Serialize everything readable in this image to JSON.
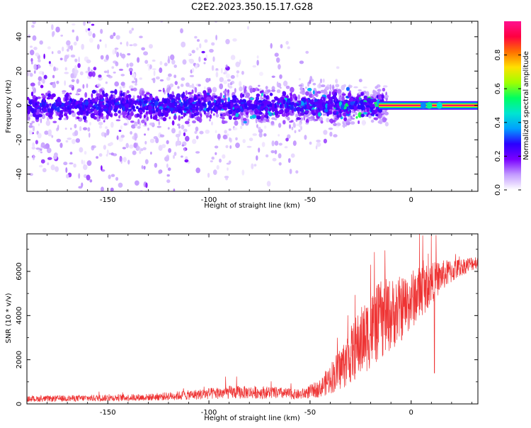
{
  "title": "C2E2.2023.350.15.17.G28",
  "chart_data": [
    {
      "type": "heatmap",
      "xlabel": "Height of straight line (km)",
      "ylabel": "Frequency (Hz)",
      "xlim": [
        -190,
        33
      ],
      "ylim": [
        -50,
        49
      ],
      "xticks": [
        -150,
        -100,
        -50,
        0
      ],
      "yticks": [
        -40,
        -20,
        0,
        20,
        40
      ],
      "colorbar": {
        "label": "Normalized spectral amplitude",
        "range": [
          0,
          1
        ],
        "ticks": [
          0.0,
          0.2,
          0.4,
          0.6,
          0.8
        ],
        "colors": [
          "#ffffff",
          "#c39bff",
          "#7a00ff",
          "#2a00ff",
          "#00a0ff",
          "#00e5d0",
          "#00ff60",
          "#a0ff00",
          "#ffe000",
          "#ff7000",
          "#ff0040",
          "#ff1090"
        ]
      },
      "carrier": {
        "frequency": 0,
        "x_start": -16,
        "x_end": 33,
        "amplitude": 0.95
      },
      "band_halfwidth_profile": [
        {
          "x": -190,
          "hz": 50
        },
        {
          "x": -120,
          "hz": 45
        },
        {
          "x": -60,
          "hz": 30
        },
        {
          "x": -30,
          "hz": 12
        },
        {
          "x": -12,
          "hz": 8
        }
      ]
    },
    {
      "type": "line",
      "xlabel": "Height of straight line (km)",
      "ylabel": "SNR (10 * v/v)",
      "xlim": [
        -190,
        33
      ],
      "ylim": [
        0,
        7700
      ],
      "xticks": [
        -150,
        -100,
        -50,
        0
      ],
      "yticks": [
        0,
        2000,
        4000,
        6000
      ],
      "color": "#ee3333",
      "envelope": [
        {
          "x": -190,
          "mean": 220,
          "noise": 130
        },
        {
          "x": -160,
          "mean": 260,
          "noise": 150
        },
        {
          "x": -130,
          "mean": 300,
          "noise": 160
        },
        {
          "x": -110,
          "mean": 400,
          "noise": 220
        },
        {
          "x": -90,
          "mean": 520,
          "noise": 300
        },
        {
          "x": -70,
          "mean": 520,
          "noise": 280
        },
        {
          "x": -55,
          "mean": 420,
          "noise": 230
        },
        {
          "x": -45,
          "mean": 700,
          "noise": 400
        },
        {
          "x": -35,
          "mean": 1600,
          "noise": 1000
        },
        {
          "x": -25,
          "mean": 2800,
          "noise": 1600
        },
        {
          "x": -15,
          "mean": 3800,
          "noise": 1800
        },
        {
          "x": -5,
          "mean": 4300,
          "noise": 1500
        },
        {
          "x": 5,
          "mean": 5100,
          "noise": 1200
        },
        {
          "x": 15,
          "mean": 5800,
          "noise": 700
        },
        {
          "x": 25,
          "mean": 6200,
          "noise": 400
        },
        {
          "x": 33,
          "mean": 6450,
          "noise": 300
        }
      ],
      "spikes": [
        {
          "x": 10,
          "y": 7650
        },
        {
          "x": -13,
          "y": 6950
        },
        {
          "x": -20,
          "y": 6300
        },
        {
          "x": 6,
          "y": 6500
        },
        {
          "x": 11.5,
          "y": 1400
        }
      ]
    }
  ]
}
